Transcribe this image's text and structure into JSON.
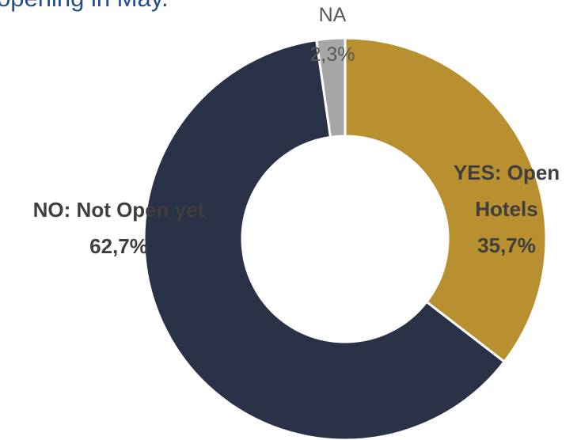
{
  "chart_data": {
    "type": "donut",
    "title": "opening in May.",
    "categories": [
      "YES: Open Hotels",
      "NO: Not Open yet",
      "NA"
    ],
    "values": [
      35.7,
      62.7,
      2.3
    ],
    "value_labels": [
      "35,7%",
      "62,7%",
      "2,3%"
    ],
    "colors": [
      "#B8902F",
      "#2A3247",
      "#A6A6A6"
    ]
  }
}
